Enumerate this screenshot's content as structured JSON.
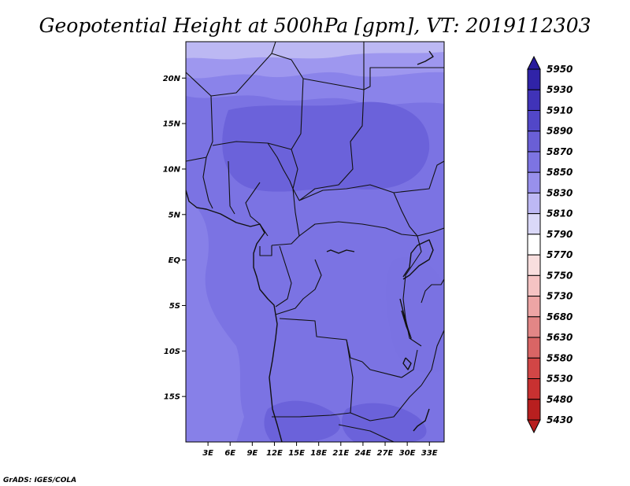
{
  "title": "Geopotential Height at 500hPa [gpm], VT: 2019112303",
  "credit": "GrADS: IGES/COLA",
  "map": {
    "lon_range": [
      0,
      35
    ],
    "lat_range": [
      -20,
      24
    ],
    "x_ticks": [
      "3E",
      "6E",
      "9E",
      "12E",
      "15E",
      "18E",
      "21E",
      "24E",
      "27E",
      "30E",
      "33E"
    ],
    "x_tick_values": [
      3,
      6,
      9,
      12,
      15,
      18,
      21,
      24,
      27,
      30,
      33
    ],
    "y_ticks": [
      "20N",
      "15N",
      "10N",
      "5N",
      "EQ",
      "5S",
      "10S",
      "15S"
    ],
    "y_tick_values": [
      20,
      15,
      10,
      5,
      0,
      -5,
      -10,
      -15
    ],
    "fill_colors": {
      "5810": "#bcb8f3",
      "5830": "#9e97ef",
      "5850": "#8a83ea",
      "5870": "#7b73e3",
      "5890": "#6b62da"
    }
  },
  "colorbar": {
    "labels": [
      "5950",
      "5930",
      "5910",
      "5890",
      "5870",
      "5850",
      "5830",
      "5810",
      "5790",
      "5770",
      "5750",
      "5730",
      "5680",
      "5630",
      "5580",
      "5530",
      "5480",
      "5430"
    ],
    "colors": [
      "#281a9c",
      "#3023a8",
      "#4033b8",
      "#5247c8",
      "#6a5fd6",
      "#7d74e2",
      "#9890ec",
      "#bdb8f4",
      "#dad8f8",
      "#ffffff",
      "#f8dede",
      "#f5c3c3",
      "#eda5a5",
      "#e28686",
      "#d96565",
      "#d14646",
      "#c83131",
      "#b81f1f"
    ]
  }
}
